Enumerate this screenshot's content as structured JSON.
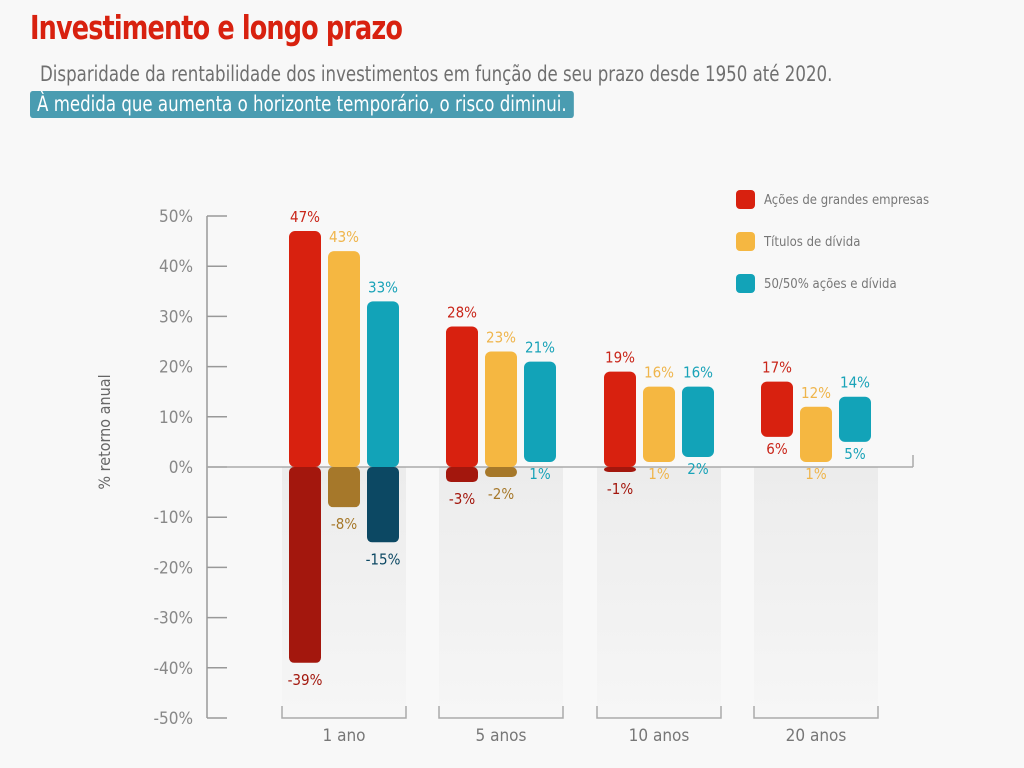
{
  "header": {
    "title": "Investimento e longo prazo",
    "subtitle": "Disparidade da rentabilidade dos investimentos em função de seu prazo desde 1950 até 2020.",
    "highlight": "À medida que aumenta o horizonte temporário, o risco diminui."
  },
  "chart_data": {
    "type": "bar",
    "subtype": "floating range bars (min to max)",
    "ylabel": "% retorno anual",
    "xlabel": "",
    "ylim": [
      -50,
      50
    ],
    "yticks": [
      "50%",
      "40%",
      "30%",
      "20%",
      "10%",
      "0%",
      "-10%",
      "-20%",
      "-30%",
      "-40%",
      "-50%"
    ],
    "ytick_values": [
      50,
      40,
      30,
      20,
      10,
      0,
      -10,
      -20,
      -30,
      -40,
      -50
    ],
    "grid": false,
    "legend_position": "top-right",
    "categories": [
      "1 ano",
      "5 anos",
      "10 anos",
      "20 anos"
    ],
    "series": [
      {
        "name": "Ações de grandes empresas",
        "color": "#d8210f",
        "dark_color": "#a3170d",
        "label_color": "#c9261a",
        "max": [
          47,
          28,
          19,
          17
        ],
        "min": [
          -39,
          -3,
          -1,
          6
        ],
        "max_labels": [
          "47%",
          "28%",
          "19%",
          "17%"
        ],
        "min_labels": [
          "-39%",
          "-3%",
          "-1%",
          "6%"
        ]
      },
      {
        "name": "Títulos de dívida",
        "color": "#f5b741",
        "dark_color": "#a6782a",
        "label_color": "#efb54c",
        "max": [
          43,
          23,
          16,
          12
        ],
        "min": [
          -8,
          -2,
          1,
          1
        ],
        "max_labels": [
          "43%",
          "23%",
          "16%",
          "12%"
        ],
        "min_labels": [
          "-8%",
          "-2%",
          "1%",
          "1%"
        ]
      },
      {
        "name": "50/50% ações e dívida",
        "color": "#12a3b8",
        "dark_color": "#0c4863",
        "label_color": "#1aa3b8",
        "max": [
          33,
          21,
          16,
          14
        ],
        "min": [
          -15,
          1,
          2,
          5
        ],
        "max_labels": [
          "33%",
          "21%",
          "16%",
          "14%"
        ],
        "min_labels": [
          "-15%",
          "1%",
          "2%",
          "5%"
        ]
      }
    ]
  }
}
